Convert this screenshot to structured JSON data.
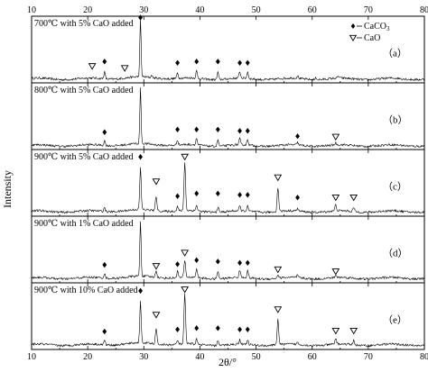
{
  "chart_data": {
    "type": "line",
    "xlabel": "2θ/°",
    "ylabel": "Intensity",
    "xlim": [
      10,
      80
    ],
    "xticks": [
      10,
      20,
      30,
      40,
      50,
      60,
      70,
      80
    ],
    "legend": {
      "placement": "top-right",
      "entries": [
        {
          "symbol": "diamond",
          "label": "CaCO",
          "subscript": "3"
        },
        {
          "symbol": "triangle-down",
          "label": "CaO"
        }
      ]
    },
    "panels": [
      {
        "title": "700℃  with 5% CaO added",
        "tag": "（a）",
        "baseline": 0.06,
        "peaks": [
          {
            "x": 23.0,
            "h": 0.1,
            "w": 0.18
          },
          {
            "x": 29.4,
            "h": 0.86,
            "w": 0.16
          },
          {
            "x": 31.4,
            "h": 0.04,
            "w": 0.15
          },
          {
            "x": 36.0,
            "h": 0.08,
            "w": 0.18
          },
          {
            "x": 39.4,
            "h": 0.11,
            "w": 0.18
          },
          {
            "x": 43.2,
            "h": 0.11,
            "w": 0.18
          },
          {
            "x": 47.1,
            "h": 0.1,
            "w": 0.18
          },
          {
            "x": 48.5,
            "h": 0.1,
            "w": 0.18
          },
          {
            "x": 57.4,
            "h": 0.04,
            "w": 0.18
          },
          {
            "x": 60.7,
            "h": 0.03,
            "w": 0.18
          },
          {
            "x": 64.7,
            "h": 0.03,
            "w": 0.18
          }
        ],
        "markers": [
          {
            "x": 23.0,
            "type": "diamond",
            "y": 0.32
          },
          {
            "x": 29.4,
            "type": "diamond",
            "y": 0.98
          },
          {
            "x": 36.0,
            "type": "diamond",
            "y": 0.3
          },
          {
            "x": 39.4,
            "type": "diamond",
            "y": 0.32
          },
          {
            "x": 43.2,
            "type": "diamond",
            "y": 0.32
          },
          {
            "x": 47.1,
            "type": "diamond",
            "y": 0.3
          },
          {
            "x": 48.5,
            "type": "diamond",
            "y": 0.3
          },
          {
            "x": 20.8,
            "type": "triangle",
            "y": 0.25
          },
          {
            "x": 26.6,
            "type": "triangle",
            "y": 0.22
          }
        ]
      },
      {
        "title": "800℃  with 5% CaO added",
        "tag": "（b）",
        "baseline": 0.06,
        "peaks": [
          {
            "x": 23.0,
            "h": 0.07,
            "w": 0.18
          },
          {
            "x": 29.4,
            "h": 0.82,
            "w": 0.16
          },
          {
            "x": 36.0,
            "h": 0.08,
            "w": 0.18
          },
          {
            "x": 39.4,
            "h": 0.1,
            "w": 0.18
          },
          {
            "x": 43.2,
            "h": 0.1,
            "w": 0.18
          },
          {
            "x": 47.1,
            "h": 0.09,
            "w": 0.18
          },
          {
            "x": 48.5,
            "h": 0.09,
            "w": 0.18
          },
          {
            "x": 57.4,
            "h": 0.04,
            "w": 0.18
          },
          {
            "x": 64.2,
            "h": 0.03,
            "w": 0.18
          }
        ],
        "markers": [
          {
            "x": 23.0,
            "type": "diamond",
            "y": 0.26
          },
          {
            "x": 36.0,
            "type": "diamond",
            "y": 0.3
          },
          {
            "x": 39.4,
            "type": "diamond",
            "y": 0.3
          },
          {
            "x": 43.2,
            "type": "diamond",
            "y": 0.3
          },
          {
            "x": 47.1,
            "type": "diamond",
            "y": 0.28
          },
          {
            "x": 48.5,
            "type": "diamond",
            "y": 0.28
          },
          {
            "x": 57.4,
            "type": "diamond",
            "y": 0.2
          },
          {
            "x": 64.2,
            "type": "triangle",
            "y": 0.19
          }
        ]
      },
      {
        "title": "900℃  with 5% CaO added",
        "tag": "（c）",
        "baseline": 0.07,
        "peaks": [
          {
            "x": 23.0,
            "h": 0.06,
            "w": 0.18
          },
          {
            "x": 29.4,
            "h": 0.62,
            "w": 0.18
          },
          {
            "x": 32.2,
            "h": 0.22,
            "w": 0.2
          },
          {
            "x": 36.0,
            "h": 0.07,
            "w": 0.18
          },
          {
            "x": 37.3,
            "h": 0.72,
            "w": 0.2
          },
          {
            "x": 39.4,
            "h": 0.09,
            "w": 0.18
          },
          {
            "x": 43.2,
            "h": 0.08,
            "w": 0.18
          },
          {
            "x": 47.1,
            "h": 0.07,
            "w": 0.18
          },
          {
            "x": 48.5,
            "h": 0.07,
            "w": 0.18
          },
          {
            "x": 53.9,
            "h": 0.36,
            "w": 0.2
          },
          {
            "x": 57.4,
            "h": 0.04,
            "w": 0.18
          },
          {
            "x": 64.2,
            "h": 0.09,
            "w": 0.2
          },
          {
            "x": 67.4,
            "h": 0.06,
            "w": 0.2
          }
        ],
        "markers": [
          {
            "x": 29.4,
            "type": "diamond",
            "y": 0.89
          },
          {
            "x": 32.2,
            "type": "triangle",
            "y": 0.52
          },
          {
            "x": 36.0,
            "type": "diamond",
            "y": 0.3
          },
          {
            "x": 37.3,
            "type": "triangle",
            "y": 0.89
          },
          {
            "x": 39.4,
            "type": "diamond",
            "y": 0.34
          },
          {
            "x": 43.2,
            "type": "diamond",
            "y": 0.34
          },
          {
            "x": 47.1,
            "type": "diamond",
            "y": 0.32
          },
          {
            "x": 48.5,
            "type": "diamond",
            "y": 0.32
          },
          {
            "x": 53.9,
            "type": "triangle",
            "y": 0.58
          },
          {
            "x": 57.4,
            "type": "diamond",
            "y": 0.28
          },
          {
            "x": 64.2,
            "type": "triangle",
            "y": 0.28
          },
          {
            "x": 67.4,
            "type": "triangle",
            "y": 0.28
          }
        ]
      },
      {
        "title": "900℃  with 1% CaO added",
        "tag": "（d）",
        "baseline": 0.07,
        "peaks": [
          {
            "x": 23.0,
            "h": 0.07,
            "w": 0.18
          },
          {
            "x": 29.4,
            "h": 0.82,
            "w": 0.16
          },
          {
            "x": 32.2,
            "h": 0.1,
            "w": 0.2
          },
          {
            "x": 36.0,
            "h": 0.1,
            "w": 0.18
          },
          {
            "x": 37.3,
            "h": 0.25,
            "w": 0.2
          },
          {
            "x": 39.4,
            "h": 0.14,
            "w": 0.18
          },
          {
            "x": 43.2,
            "h": 0.12,
            "w": 0.18
          },
          {
            "x": 47.1,
            "h": 0.11,
            "w": 0.18
          },
          {
            "x": 48.5,
            "h": 0.11,
            "w": 0.18
          },
          {
            "x": 53.9,
            "h": 0.05,
            "w": 0.2
          },
          {
            "x": 57.4,
            "h": 0.04,
            "w": 0.18
          },
          {
            "x": 64.2,
            "h": 0.03,
            "w": 0.2
          }
        ],
        "markers": [
          {
            "x": 23.0,
            "type": "diamond",
            "y": 0.27
          },
          {
            "x": 32.2,
            "type": "triangle",
            "y": 0.25
          },
          {
            "x": 36.0,
            "type": "diamond",
            "y": 0.28
          },
          {
            "x": 37.3,
            "type": "triangle",
            "y": 0.45
          },
          {
            "x": 39.4,
            "type": "diamond",
            "y": 0.34
          },
          {
            "x": 43.2,
            "type": "diamond",
            "y": 0.32
          },
          {
            "x": 47.1,
            "type": "diamond",
            "y": 0.3
          },
          {
            "x": 48.5,
            "type": "diamond",
            "y": 0.3
          },
          {
            "x": 53.9,
            "type": "triangle",
            "y": 0.2
          },
          {
            "x": 64.2,
            "type": "triangle",
            "y": 0.17
          }
        ]
      },
      {
        "title": "900℃  with 10% CaO added",
        "tag": "（e）",
        "baseline": 0.07,
        "peaks": [
          {
            "x": 23.0,
            "h": 0.07,
            "w": 0.18
          },
          {
            "x": 29.4,
            "h": 0.62,
            "w": 0.18
          },
          {
            "x": 32.2,
            "h": 0.22,
            "w": 0.2
          },
          {
            "x": 36.0,
            "h": 0.06,
            "w": 0.18
          },
          {
            "x": 37.3,
            "h": 0.74,
            "w": 0.2
          },
          {
            "x": 39.4,
            "h": 0.08,
            "w": 0.18
          },
          {
            "x": 43.2,
            "h": 0.08,
            "w": 0.18
          },
          {
            "x": 47.1,
            "h": 0.07,
            "w": 0.18
          },
          {
            "x": 48.5,
            "h": 0.07,
            "w": 0.18
          },
          {
            "x": 53.9,
            "h": 0.38,
            "w": 0.2
          },
          {
            "x": 57.4,
            "h": 0.03,
            "w": 0.18
          },
          {
            "x": 64.2,
            "h": 0.09,
            "w": 0.2
          },
          {
            "x": 67.4,
            "h": 0.07,
            "w": 0.2
          }
        ],
        "markers": [
          {
            "x": 23.0,
            "type": "diamond",
            "y": 0.27
          },
          {
            "x": 29.4,
            "type": "diamond",
            "y": 0.88
          },
          {
            "x": 32.2,
            "type": "triangle",
            "y": 0.52
          },
          {
            "x": 36.0,
            "type": "diamond",
            "y": 0.3
          },
          {
            "x": 37.3,
            "type": "triangle",
            "y": 0.9
          },
          {
            "x": 39.4,
            "type": "diamond",
            "y": 0.32
          },
          {
            "x": 43.2,
            "type": "diamond",
            "y": 0.32
          },
          {
            "x": 47.1,
            "type": "diamond",
            "y": 0.3
          },
          {
            "x": 48.5,
            "type": "diamond",
            "y": 0.3
          },
          {
            "x": 53.9,
            "type": "triangle",
            "y": 0.6
          },
          {
            "x": 64.2,
            "type": "triangle",
            "y": 0.28
          },
          {
            "x": 67.4,
            "type": "triangle",
            "y": 0.28
          }
        ]
      }
    ]
  }
}
